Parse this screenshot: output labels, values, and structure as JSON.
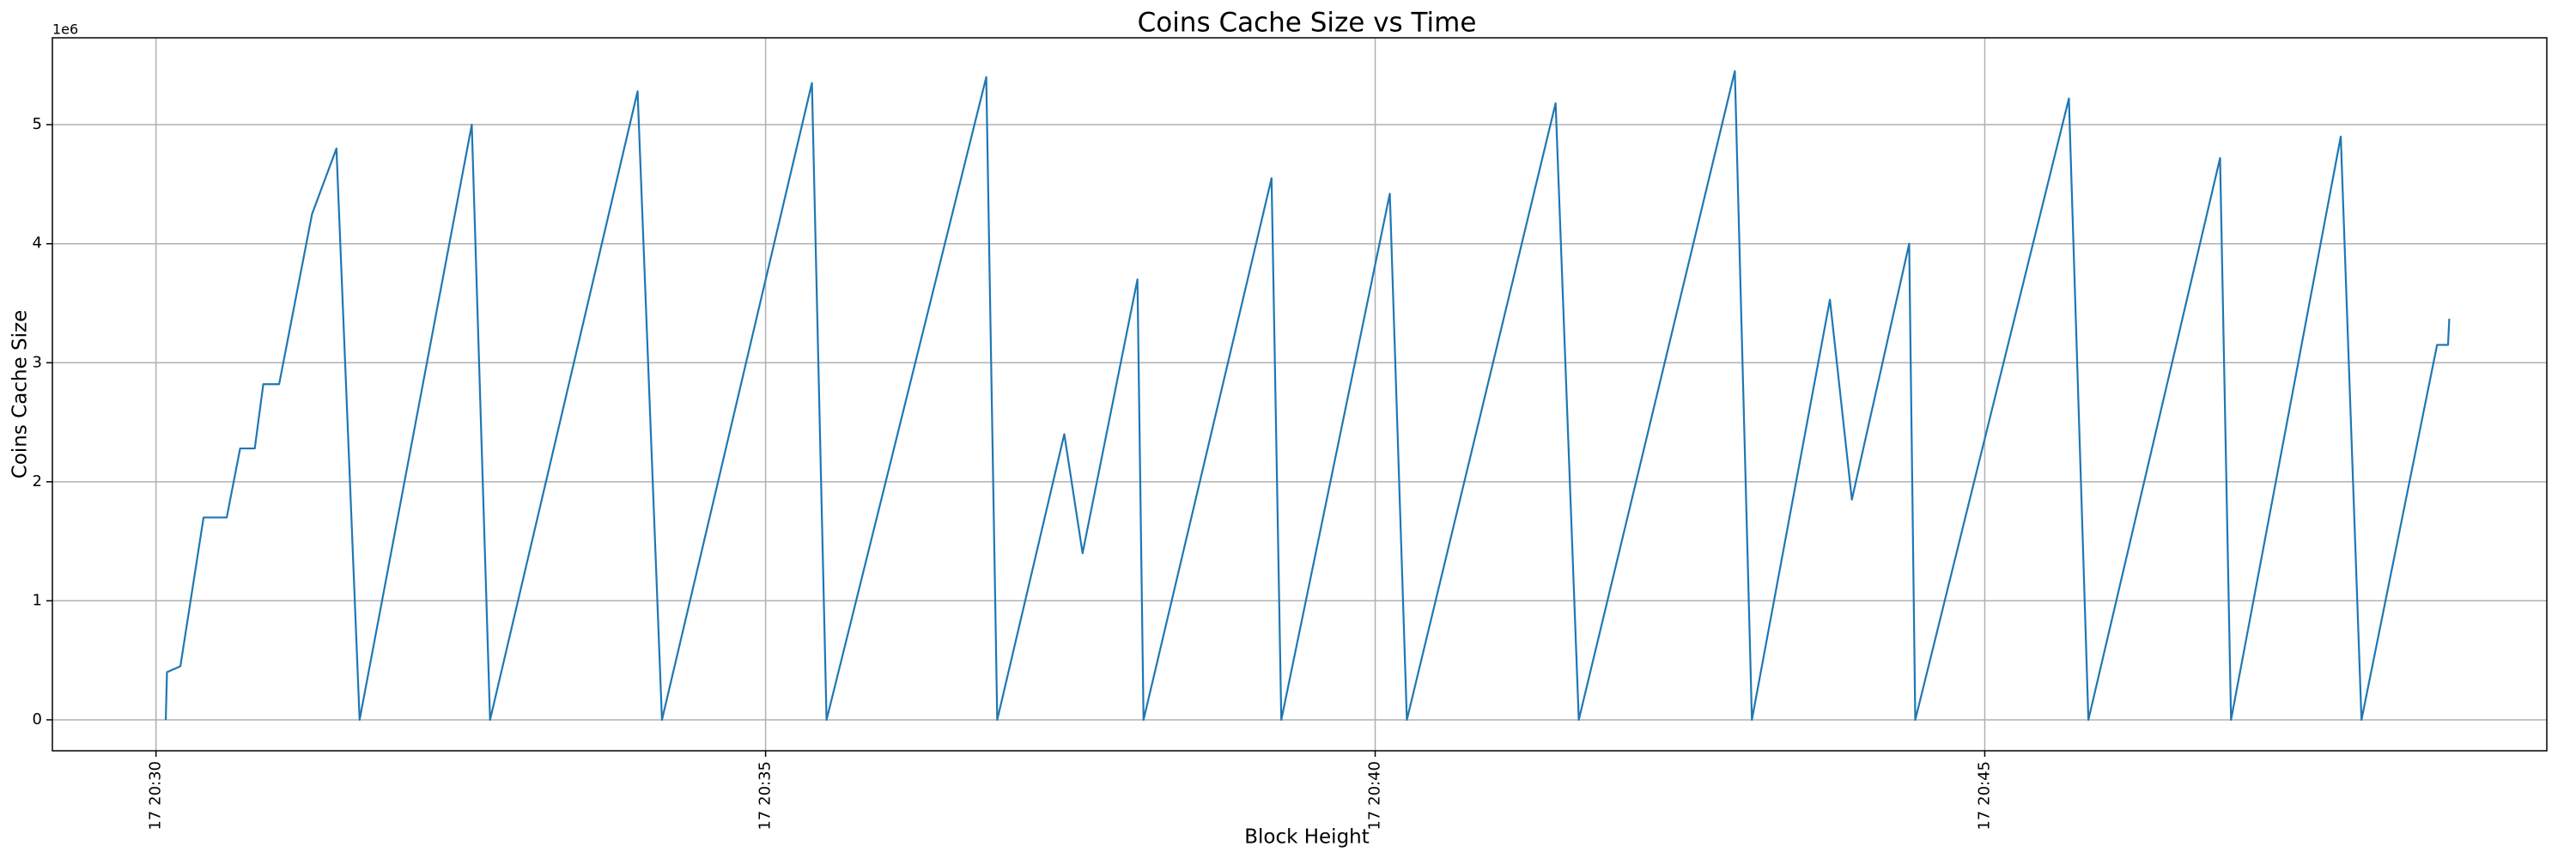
{
  "chart_data": {
    "type": "line",
    "title": "Coins Cache Size vs Time",
    "x_label": "Block Height",
    "y_label": "Coins Cache Size",
    "y_offset_label": "1e6",
    "x": [
      30.08,
      30.09,
      30.2,
      30.39,
      30.58,
      30.69,
      30.81,
      30.88,
      31.01,
      31.28,
      31.48,
      31.67,
      32.59,
      32.74,
      33.95,
      34.15,
      35.38,
      35.5,
      36.81,
      36.9,
      37.45,
      37.6,
      38.05,
      38.1,
      39.15,
      39.23,
      40.12,
      40.26,
      41.48,
      41.67,
      42.95,
      43.09,
      43.73,
      43.91,
      44.38,
      44.43,
      45.69,
      45.85,
      46.93,
      47.02,
      47.92,
      48.09,
      48.71,
      48.8,
      48.81
    ],
    "series": [
      {
        "name": "Coins Cache Size",
        "color": "#1f77b4",
        "values": [
          0,
          0.4,
          0.45,
          1.7,
          1.7,
          2.28,
          2.28,
          2.82,
          2.82,
          4.25,
          4.8,
          0,
          5.0,
          0,
          5.28,
          0,
          5.35,
          0,
          5.4,
          0,
          2.4,
          1.4,
          3.7,
          0,
          4.55,
          0,
          4.42,
          0,
          5.18,
          0,
          5.45,
          0,
          3.53,
          1.85,
          4.0,
          0,
          5.22,
          0,
          4.72,
          0,
          4.9,
          0,
          3.15,
          3.15,
          3.37
        ]
      }
    ],
    "xlim": [
      29.15,
      49.61
    ],
    "ylim": [
      -0.26,
      5.73
    ],
    "xticks": [
      {
        "value": 30,
        "label": "17 20:30"
      },
      {
        "value": 35,
        "label": "17 20:35"
      },
      {
        "value": 40,
        "label": "17 20:40"
      },
      {
        "value": 45,
        "label": "17 20:45"
      }
    ],
    "yticks": [
      0,
      1,
      2,
      3,
      4,
      5
    ],
    "grid": true
  }
}
